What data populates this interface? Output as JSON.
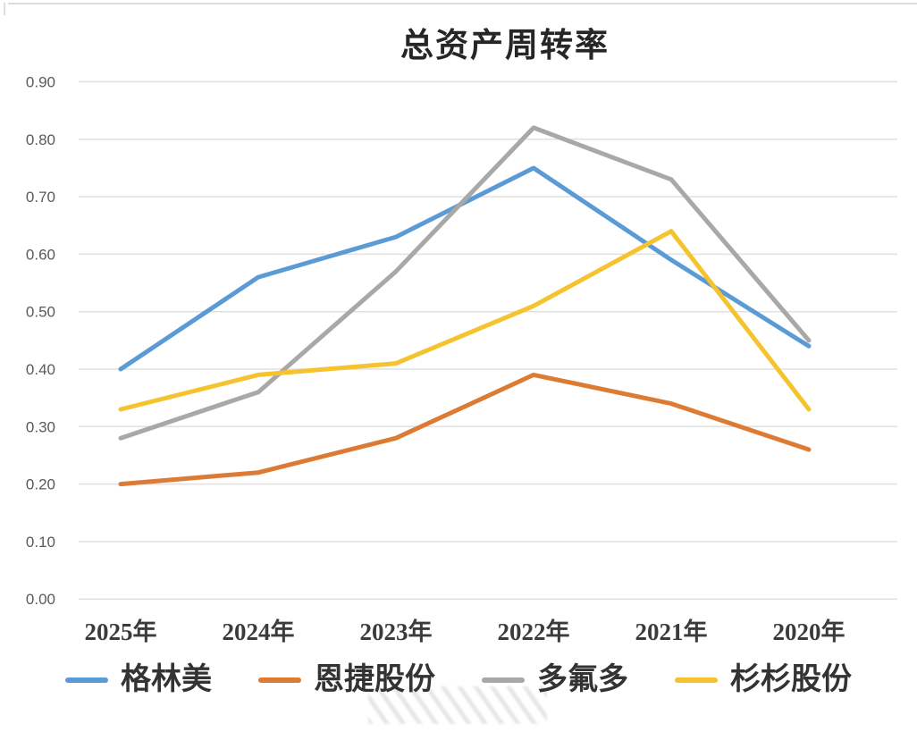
{
  "chart_data": {
    "type": "line",
    "title": "总资产周转率",
    "categories": [
      "2025年",
      "2024年",
      "2023年",
      "2022年",
      "2021年",
      "2020年"
    ],
    "series": [
      {
        "name": "格林美",
        "color": "#5B9BD5",
        "values": [
          0.4,
          0.56,
          0.63,
          0.75,
          0.59,
          0.44
        ]
      },
      {
        "name": "恩捷股份",
        "color": "#DC7B33",
        "values": [
          0.2,
          0.22,
          0.28,
          0.39,
          0.34,
          0.26
        ]
      },
      {
        "name": "多氟多",
        "color": "#A8A8A8",
        "values": [
          0.28,
          0.36,
          0.57,
          0.82,
          0.73,
          0.45
        ]
      },
      {
        "name": "杉杉股份",
        "color": "#F5C32E",
        "values": [
          0.33,
          0.39,
          0.41,
          0.51,
          0.64,
          0.33
        ]
      }
    ],
    "y_ticks": [
      "0.00",
      "0.10",
      "0.20",
      "0.30",
      "0.40",
      "0.50",
      "0.60",
      "0.70",
      "0.80",
      "0.90"
    ],
    "ylim": [
      0.0,
      0.9
    ],
    "y_tick_step": 0.1,
    "grid": true,
    "legend_position": "bottom",
    "grid_color": "#e0e0e0",
    "line_width": 5
  }
}
